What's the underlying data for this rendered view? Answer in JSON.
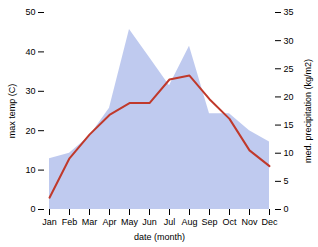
{
  "chart_data": {
    "type": "line",
    "xlabel": "date (month)",
    "ylabel": "max temp (C)",
    "y2label": "med. precipitation (kg/m2)",
    "categories": [
      "Jan",
      "Feb",
      "Mar",
      "Apr",
      "May",
      "Jun",
      "Jul",
      "Aug",
      "Sep",
      "Oct",
      "Nov",
      "Dec"
    ],
    "series": [
      {
        "type": "area",
        "axis": "y2",
        "color": "#b8c4ed",
        "values": [
          9,
          10,
          13,
          18,
          32,
          27,
          22,
          29,
          17,
          17,
          14,
          12
        ]
      },
      {
        "type": "line",
        "color": "#c0392b",
        "values": [
          3,
          13,
          19,
          24,
          27,
          27,
          33,
          34,
          28,
          23,
          15,
          11
        ]
      }
    ],
    "ylim": [
      0,
      50
    ],
    "yticks": [
      0,
      10,
      20,
      30,
      40,
      50
    ],
    "y2lim": [
      0,
      35
    ],
    "y2ticks": [
      0,
      5,
      10,
      15,
      20,
      25,
      30,
      35
    ]
  }
}
